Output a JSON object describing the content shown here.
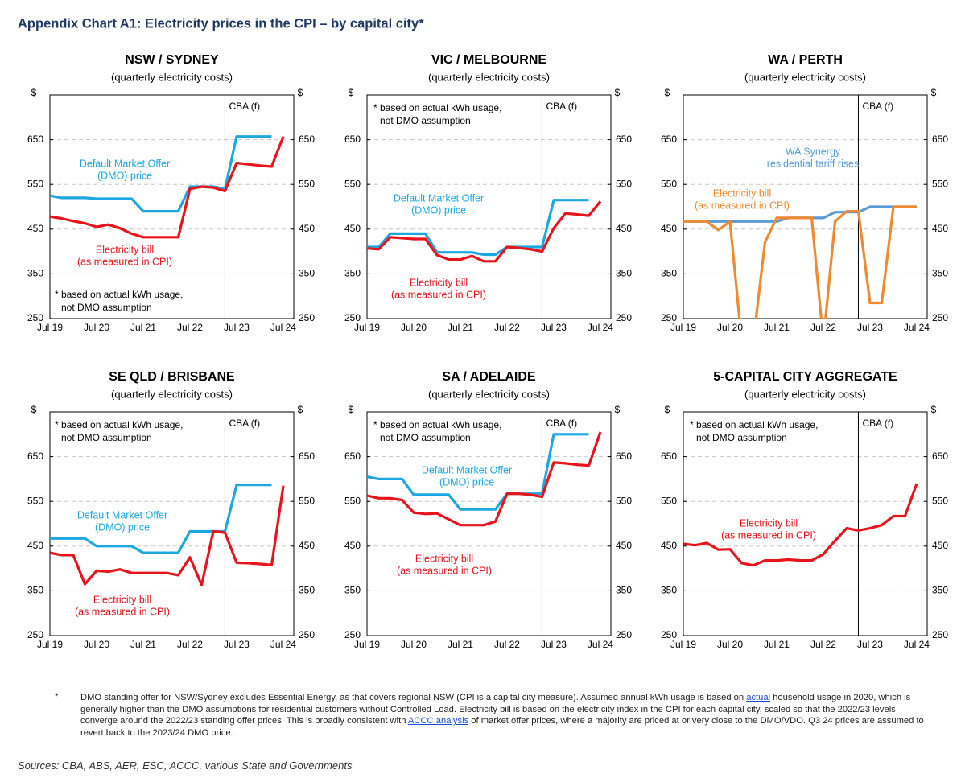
{
  "title": "Appendix Chart A1: Electricity prices in the CPI – by capital city*",
  "chart_data": [
    {
      "type": "line",
      "title": "NSW / SYDNEY",
      "subtitle": "(quarterly electricity costs)",
      "ylabel": "$",
      "y2label": "$",
      "categories": [
        "Jul 19",
        null,
        null,
        null,
        "Jul 20",
        null,
        null,
        null,
        "Jul 21",
        null,
        null,
        null,
        "Jul 22",
        null,
        null,
        null,
        "Jul 23",
        null,
        null,
        null,
        "Jul 24"
      ],
      "ylim": [
        250,
        750
      ],
      "yticks": [
        250,
        350,
        450,
        550,
        650
      ],
      "y2lim": [
        250,
        750
      ],
      "y2ticks": [
        250,
        350,
        450,
        550,
        650
      ],
      "grid": true,
      "forecast": {
        "label": "CBA (f)",
        "at": 15
      },
      "note": [
        "* based on actual kWh usage,",
        "not DMO assumption"
      ],
      "series": [
        {
          "label": [
            "Default Market Offer",
            "(DMO) price"
          ],
          "color": "#1ca7e3",
          "values": [
            525,
            520,
            520,
            520,
            518,
            518,
            518,
            518,
            490,
            490,
            490,
            490,
            545,
            545,
            545,
            540,
            657,
            657,
            657,
            657,
            null
          ]
        },
        {
          "label": [
            "Electricity bill",
            "(as measured in CPI)"
          ],
          "color": "#e8141b",
          "values": [
            478,
            474,
            468,
            463,
            455,
            460,
            452,
            440,
            432,
            432,
            432,
            432,
            540,
            545,
            543,
            535,
            598,
            595,
            592,
            590,
            657
          ]
        }
      ]
    },
    {
      "type": "line",
      "title": "VIC / MELBOURNE",
      "subtitle": "(quarterly electricity costs)",
      "ylabel": "$",
      "y2label": "$",
      "categories": [
        "Jul 19",
        null,
        null,
        null,
        "Jul 20",
        null,
        null,
        null,
        "Jul 21",
        null,
        null,
        null,
        "Jul 22",
        null,
        null,
        null,
        "Jul 23",
        null,
        null,
        null,
        "Jul 24"
      ],
      "ylim": [
        250,
        750
      ],
      "yticks": [
        250,
        350,
        450,
        550,
        650
      ],
      "y2lim": [
        250,
        750
      ],
      "y2ticks": [
        250,
        350,
        450,
        550,
        650
      ],
      "grid": true,
      "forecast": {
        "label": "CBA (f)",
        "at": 15
      },
      "note": [
        "* based on actual kWh usage,",
        "not DMO assumption"
      ],
      "series": [
        {
          "label": [
            "Default Market Offer",
            "(DMO) price"
          ],
          "color": "#1ca7e3",
          "values": [
            410,
            410,
            440,
            440,
            440,
            440,
            398,
            398,
            398,
            398,
            393,
            393,
            410,
            410,
            410,
            410,
            515,
            515,
            515,
            515,
            null
          ]
        },
        {
          "label": [
            "Electricity bill",
            "(as measured in CPI)"
          ],
          "color": "#e8141b",
          "values": [
            407,
            405,
            432,
            430,
            428,
            428,
            392,
            382,
            382,
            390,
            378,
            378,
            410,
            408,
            405,
            400,
            452,
            485,
            483,
            480,
            512
          ]
        }
      ]
    },
    {
      "type": "line",
      "title": "WA / PERTH",
      "subtitle": "(quarterly electricity costs)",
      "ylabel": "$",
      "y2label": "$",
      "categories": [
        "Jul 19",
        null,
        null,
        null,
        "Jul 20",
        null,
        null,
        null,
        "Jul 21",
        null,
        null,
        null,
        "Jul 22",
        null,
        null,
        null,
        "Jul 23",
        null,
        null,
        null,
        "Jul 24"
      ],
      "ylim": [
        250,
        750
      ],
      "yticks": [
        250,
        350,
        450,
        550,
        650
      ],
      "y2lim": [
        250,
        750
      ],
      "y2ticks": [
        250,
        350,
        450,
        550,
        650
      ],
      "grid": true,
      "forecast": {
        "label": "CBA (f)",
        "at": 15
      },
      "series": [
        {
          "label": [
            "WA Synergy",
            "residential tariff rises"
          ],
          "color": "#5b9bd5",
          "values": [
            467,
            467,
            467,
            467,
            467,
            467,
            467,
            467,
            467,
            475,
            475,
            475,
            475,
            488,
            488,
            488,
            500,
            500,
            500,
            500,
            500
          ]
        },
        {
          "label": [
            "Electricity bill",
            "(as measured in CPI)"
          ],
          "color": "#f08a32",
          "values": [
            467,
            467,
            467,
            448,
            467,
            200,
            200,
            421,
            475,
            475,
            475,
            475,
            200,
            467,
            490,
            490,
            285,
            285,
            500,
            500,
            500
          ]
        }
      ]
    },
    {
      "type": "line",
      "title": "SE QLD / BRISBANE",
      "subtitle": "(quarterly electricity costs)",
      "ylabel": "$",
      "y2label": "$",
      "categories": [
        "Jul 19",
        null,
        null,
        null,
        "Jul 20",
        null,
        null,
        null,
        "Jul 21",
        null,
        null,
        null,
        "Jul 22",
        null,
        null,
        null,
        "Jul 23",
        null,
        null,
        null,
        "Jul 24"
      ],
      "ylim": [
        250,
        750
      ],
      "yticks": [
        250,
        350,
        450,
        550,
        650
      ],
      "y2lim": [
        250,
        750
      ],
      "y2ticks": [
        250,
        350,
        450,
        550,
        650
      ],
      "grid": true,
      "forecast": {
        "label": "CBA (f)",
        "at": 15
      },
      "note": [
        "* based on actual kWh usage,",
        "not DMO assumption"
      ],
      "series": [
        {
          "label": [
            "Default Market Offer",
            "(DMO) price"
          ],
          "color": "#1ca7e3",
          "values": [
            467,
            467,
            467,
            467,
            450,
            450,
            450,
            450,
            435,
            435,
            435,
            435,
            483,
            483,
            483,
            483,
            587,
            587,
            587,
            587,
            null
          ]
        },
        {
          "label": [
            "Electricity bill",
            "(as measured in CPI)"
          ],
          "color": "#e8141b",
          "values": [
            435,
            430,
            430,
            365,
            395,
            393,
            398,
            390,
            390,
            390,
            390,
            385,
            425,
            363,
            483,
            480,
            413,
            412,
            410,
            408,
            585
          ]
        }
      ]
    },
    {
      "type": "line",
      "title": "SA / ADELAIDE",
      "subtitle": "(quarterly electricity costs)",
      "ylabel": "$",
      "y2label": "$",
      "categories": [
        "Jul 19",
        null,
        null,
        null,
        "Jul 20",
        null,
        null,
        null,
        "Jul 21",
        null,
        null,
        null,
        "Jul 22",
        null,
        null,
        null,
        "Jul 23",
        null,
        null,
        null,
        "Jul 24"
      ],
      "ylim": [
        250,
        750
      ],
      "yticks": [
        250,
        350,
        450,
        550,
        650
      ],
      "y2lim": [
        250,
        750
      ],
      "y2ticks": [
        250,
        350,
        450,
        550,
        650
      ],
      "grid": true,
      "forecast": {
        "label": "CBA (f)",
        "at": 15
      },
      "note": [
        "* based on actual kWh usage,",
        "not DMO assumption"
      ],
      "series": [
        {
          "label": [
            "Default Market Offer",
            "(DMO) price"
          ],
          "color": "#1ca7e3",
          "values": [
            605,
            600,
            600,
            600,
            565,
            565,
            565,
            565,
            532,
            532,
            532,
            532,
            567,
            567,
            567,
            567,
            700,
            700,
            700,
            700,
            null
          ]
        },
        {
          "label": [
            "Electricity bill",
            "(as measured in CPI)"
          ],
          "color": "#e8141b",
          "values": [
            563,
            557,
            557,
            553,
            525,
            522,
            523,
            510,
            497,
            497,
            497,
            505,
            567,
            567,
            565,
            560,
            637,
            635,
            632,
            630,
            705
          ]
        }
      ]
    },
    {
      "type": "line",
      "title": "5-CAPITAL CITY AGGREGATE",
      "subtitle": "(quarterly electricity costs)",
      "ylabel": "$",
      "y2label": "$",
      "categories": [
        "Jul 19",
        null,
        null,
        null,
        "Jul 20",
        null,
        null,
        null,
        "Jul 21",
        null,
        null,
        null,
        "Jul 22",
        null,
        null,
        null,
        "Jul 23",
        null,
        null,
        null,
        "Jul 24"
      ],
      "ylim": [
        250,
        750
      ],
      "yticks": [
        250,
        350,
        450,
        550,
        650
      ],
      "y2lim": [
        250,
        750
      ],
      "y2ticks": [
        250,
        350,
        450,
        550,
        650
      ],
      "grid": true,
      "forecast": {
        "label": "CBA (f)",
        "at": 15
      },
      "note": [
        "* based on actual kWh usage,",
        "not DMO assumption"
      ],
      "series": [
        {
          "label": [
            "Electricity bill",
            "(as measured in CPI)"
          ],
          "color": "#e8141b",
          "values": [
            455,
            452,
            457,
            442,
            443,
            412,
            407,
            418,
            418,
            420,
            418,
            418,
            432,
            462,
            490,
            485,
            490,
            497,
            517,
            517,
            590
          ]
        }
      ]
    }
  ],
  "footnote": {
    "marker": "*",
    "parts": [
      "DMO standing offer for NSW/Sydney excludes Essential Energy, as that covers regional NSW (CPI is a capital city measure).  Assumed annual kWh usage is based on ",
      "actual",
      " household usage in 2020, which is generally higher than the DMO assumptions for residential customers without Controlled Load.  Electricity bill is based on the electricity index in the CPI for each capital city, scaled so that the 2022/23 levels converge around the 2022/23 standing offer prices.  This is broadly consistent with ",
      "ACCC analysis",
      " of market offer prices, where a majority are priced at or very close to the DMO/VDO.  Q3 24 prices are assumed to revert back to the 2023/24 DMO price."
    ]
  },
  "sources": "Sources: CBA, ABS, AER, ESC, ACCC, various State and Governments"
}
